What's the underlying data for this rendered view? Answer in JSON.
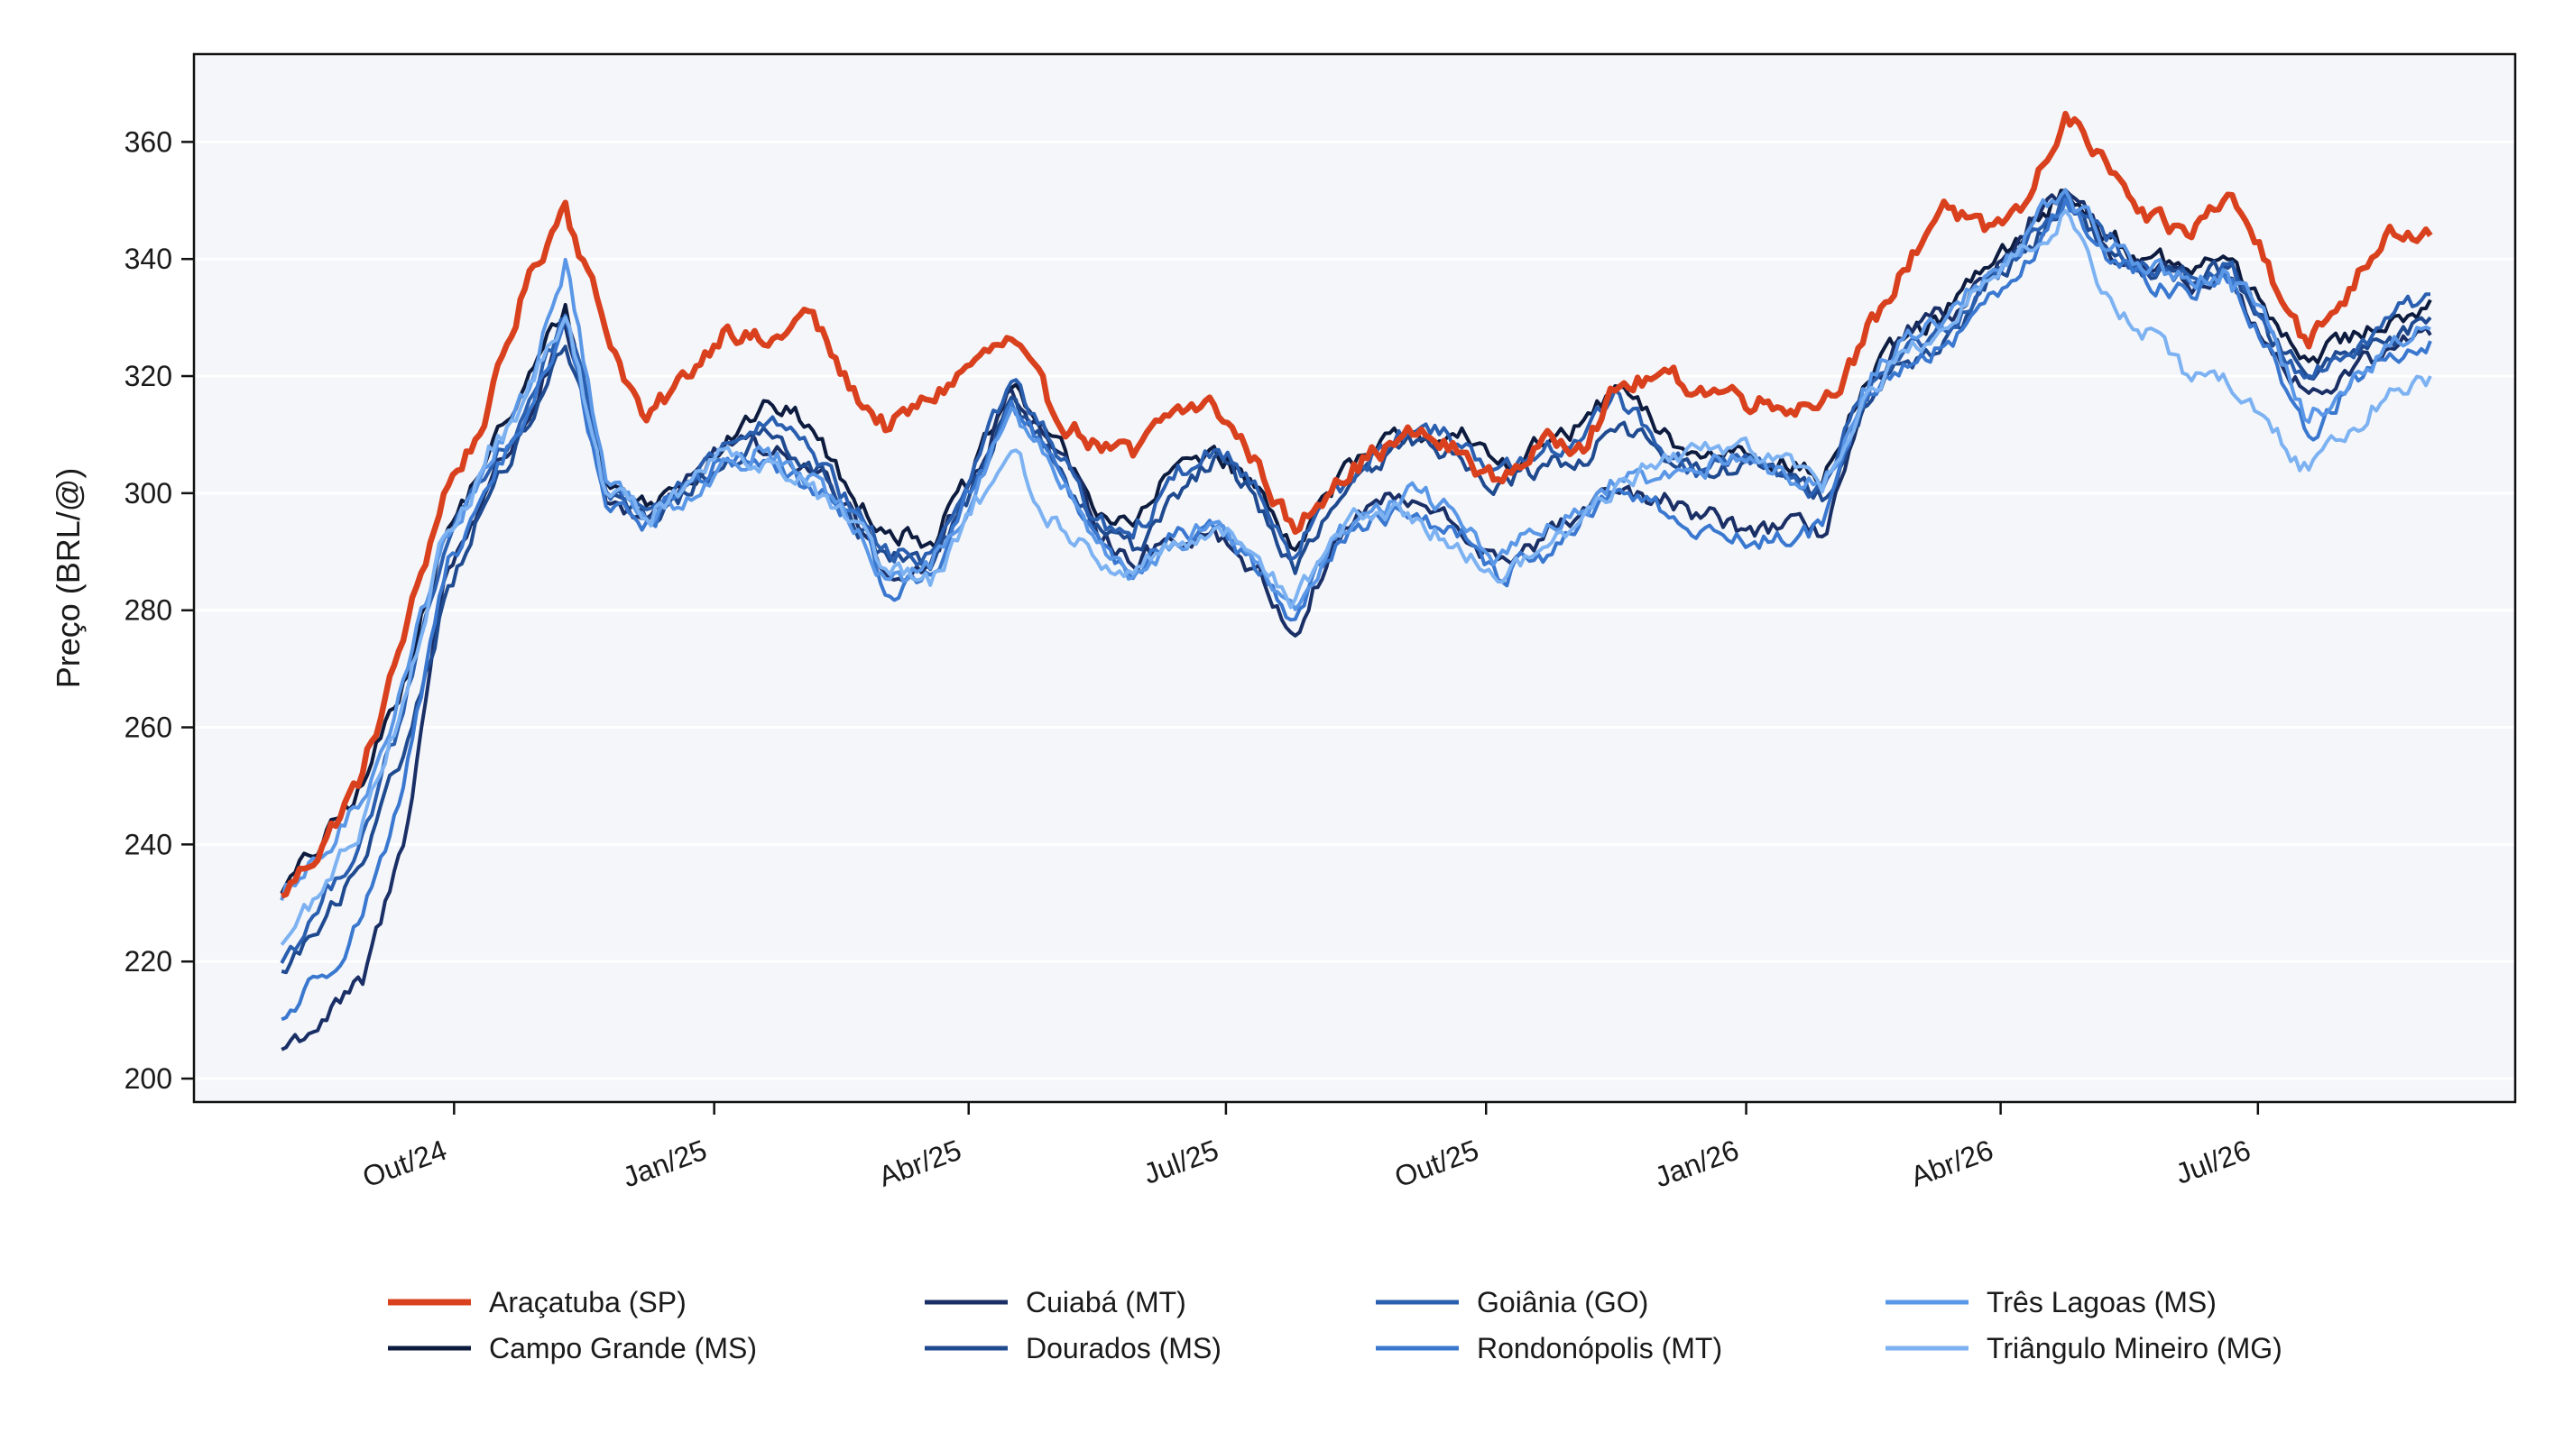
{
  "chart_data": {
    "type": "line",
    "title": "",
    "xlabel": "",
    "ylabel": "Preço (BRL/@)",
    "x_start": "2024-08-01",
    "x_end": "2026-08-31",
    "xlim": [
      "2024-07-01",
      "2026-09-30"
    ],
    "ylim": [
      196,
      375
    ],
    "y_ticks": [
      200,
      220,
      240,
      260,
      280,
      300,
      320,
      340,
      360
    ],
    "x_ticks": [
      {
        "label": "Out/24",
        "date": "2024-10-01"
      },
      {
        "label": "Jan/25",
        "date": "2025-01-01"
      },
      {
        "label": "Abr/25",
        "date": "2025-04-01"
      },
      {
        "label": "Jul/25",
        "date": "2025-07-01"
      },
      {
        "label": "Out/25",
        "date": "2025-10-01"
      },
      {
        "label": "Jan/26",
        "date": "2026-01-01"
      },
      {
        "label": "Abr/26",
        "date": "2026-04-01"
      },
      {
        "label": "Jul/26",
        "date": "2026-07-01"
      }
    ],
    "grid": "horizontal",
    "legend_position": "bottom",
    "legend_columns": 4,
    "plot_background": "#f4f6fa",
    "series": [
      {
        "name": "Araçatuba (SP)",
        "color": "#d9411e",
        "values": [
          231,
          240,
          252,
          275,
          300,
          312,
          335,
          350,
          328,
          312,
          320,
          329,
          325,
          331,
          318,
          311,
          316,
          322,
          326,
          314,
          309,
          306,
          314,
          315,
          306,
          293,
          303,
          307,
          310,
          307,
          302,
          308,
          309,
          318,
          320,
          318,
          317,
          315,
          316,
          325,
          338,
          350,
          344,
          349,
          365,
          356,
          346,
          344,
          351,
          340,
          325,
          335,
          346,
          344
        ]
      },
      {
        "name": "Campo Grande (MS)",
        "color": "#0d1b3e",
        "values": [
          232,
          240,
          250,
          268,
          292,
          305,
          318,
          332,
          302,
          298,
          302,
          310,
          315,
          312,
          300,
          294,
          292,
          302,
          318,
          310,
          298,
          294,
          304,
          308,
          301,
          291,
          302,
          307,
          311,
          309,
          305,
          308,
          311,
          318,
          310,
          306,
          308,
          306,
          302,
          318,
          326,
          330,
          338,
          344,
          352,
          344,
          340,
          338,
          340,
          330,
          323,
          326,
          330,
          333
        ]
      },
      {
        "name": "Cuiabá (MT)",
        "color": "#1a2f66",
        "values": [
          205,
          210,
          216,
          240,
          285,
          300,
          312,
          328,
          298,
          296,
          303,
          308,
          307,
          304,
          299,
          286,
          288,
          302,
          318,
          308,
          296,
          288,
          292,
          294,
          287,
          276,
          292,
          299,
          298,
          294,
          288,
          292,
          296,
          300,
          298,
          296,
          294,
          294,
          293,
          314,
          326,
          330,
          336,
          343,
          352,
          342,
          338,
          336,
          337,
          326,
          317,
          320,
          325,
          327
        ]
      },
      {
        "name": "Dourados (MS)",
        "color": "#1f4a8f",
        "values": [
          218,
          226,
          236,
          255,
          282,
          298,
          310,
          325,
          300,
          295,
          300,
          306,
          310,
          306,
          297,
          288,
          287,
          300,
          316,
          306,
          294,
          290,
          300,
          306,
          300,
          286,
          298,
          304,
          309,
          307,
          302,
          304,
          306,
          312,
          307,
          303,
          305,
          303,
          299,
          315,
          322,
          326,
          334,
          341,
          350,
          342,
          338,
          336,
          338,
          327,
          320,
          323,
          327,
          330
        ]
      },
      {
        "name": "Goiânia (GO)",
        "color": "#2a5fb0",
        "values": [
          220,
          230,
          242,
          262,
          290,
          302,
          314,
          330,
          301,
          297,
          302,
          308,
          312,
          307,
          298,
          289,
          290,
          303,
          319,
          309,
          296,
          292,
          302,
          308,
          302,
          289,
          302,
          307,
          311,
          309,
          304,
          307,
          309,
          317,
          308,
          304,
          306,
          304,
          300,
          317,
          324,
          328,
          336,
          342,
          351,
          343,
          339,
          337,
          339,
          328,
          320,
          324,
          330,
          334
        ]
      },
      {
        "name": "Rondonópolis (MT)",
        "color": "#3a78d0",
        "values": [
          210,
          218,
          228,
          250,
          284,
          300,
          312,
          330,
          298,
          295,
          301,
          306,
          305,
          301,
          297,
          283,
          286,
          300,
          316,
          306,
          294,
          286,
          292,
          294,
          287,
          279,
          291,
          297,
          296,
          292,
          285,
          290,
          294,
          300,
          297,
          294,
          292,
          292,
          294,
          314,
          322,
          325,
          332,
          340,
          350,
          340,
          336,
          335,
          336,
          325,
          310,
          318,
          324,
          326
        ]
      },
      {
        "name": "Três Lagoas (MS)",
        "color": "#5a97e6",
        "values": [
          230,
          238,
          248,
          268,
          292,
          304,
          316,
          340,
          302,
          296,
          300,
          305,
          308,
          303,
          295,
          285,
          287,
          298,
          314,
          304,
          293,
          286,
          292,
          295,
          288,
          280,
          292,
          298,
          300,
          296,
          289,
          293,
          296,
          302,
          302,
          304,
          306,
          304,
          301,
          318,
          326,
          330,
          337,
          344,
          352,
          342,
          338,
          337,
          338,
          328,
          312,
          318,
          325,
          328
        ]
      },
      {
        "name": "Triângulo Mineiro (MG)",
        "color": "#7db2f2",
        "values": [
          223,
          232,
          244,
          265,
          292,
          304,
          316,
          330,
          300,
          296,
          302,
          308,
          306,
          301,
          295,
          286,
          284,
          296,
          307,
          296,
          289,
          286,
          292,
          294,
          290,
          282,
          293,
          297,
          296,
          292,
          285,
          290,
          295,
          302,
          305,
          307,
          309,
          306,
          300,
          316,
          324,
          328,
          336,
          342,
          348,
          334,
          328,
          320,
          318,
          312,
          304,
          311,
          318,
          320
        ]
      }
    ]
  }
}
